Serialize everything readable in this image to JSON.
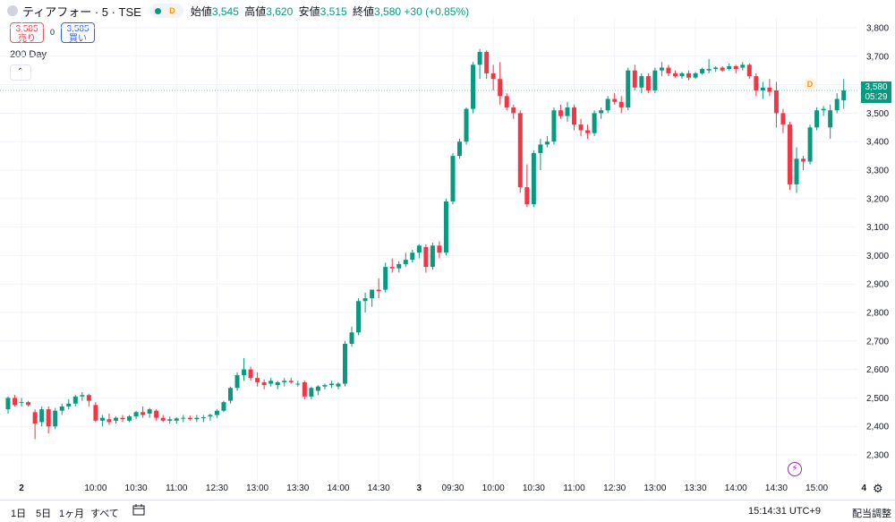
{
  "header": {
    "symbol": "ティアフォー · 5 · TSE",
    "session_badge": "D",
    "ohlc": [
      {
        "label": "始値",
        "value": "3,545"
      },
      {
        "label": "高値",
        "value": "3,620"
      },
      {
        "label": "安値",
        "value": "3,515"
      },
      {
        "label": "終値",
        "value": "3,580"
      }
    ],
    "change": "+30 (+0.85%)"
  },
  "trade": {
    "sell_price": "3,585",
    "sell_label": "売り",
    "spread": "0",
    "buy_price": "3,585",
    "buy_label": "買い"
  },
  "indicator_label": "200 Day",
  "collapse_icon": "chevron-up-icon",
  "chart_marker": "D",
  "price_tag": {
    "price": "3,580",
    "countdown": "05:29"
  },
  "colors": {
    "up": "#089981",
    "down": "#f23645",
    "grid": "#f0f3fa"
  },
  "bottom_bar": {
    "ranges": [
      "1日",
      "5日",
      "1ヶ月",
      "すべて"
    ],
    "clock": "15:14:31 UTC+9",
    "adjust": "配当調整"
  },
  "chart_data": {
    "type": "candlestick",
    "interval": "5 minutes",
    "y_axis_ticks": [
      "2,300",
      "2,400",
      "2,500",
      "2,600",
      "2,700",
      "2,800",
      "2,900",
      "3,000",
      "3,100",
      "3,200",
      "3,300",
      "3,400",
      "3,500",
      "3,600",
      "3,700",
      "3,800"
    ],
    "ylim": [
      2260,
      3820
    ],
    "x_axis_ticks": [
      {
        "label": "2",
        "i": 2
      },
      {
        "label": "10:00",
        "i": 13
      },
      {
        "label": "10:30",
        "i": 19
      },
      {
        "label": "11:00",
        "i": 25
      },
      {
        "label": "12:30",
        "i": 31
      },
      {
        "label": "13:00",
        "i": 37
      },
      {
        "label": "13:30",
        "i": 43
      },
      {
        "label": "14:00",
        "i": 49
      },
      {
        "label": "14:30",
        "i": 55
      },
      {
        "label": "3",
        "i": 61
      },
      {
        "label": "09:30",
        "i": 66
      },
      {
        "label": "10:00",
        "i": 72
      },
      {
        "label": "10:30",
        "i": 78
      },
      {
        "label": "11:00",
        "i": 84
      },
      {
        "label": "12:30",
        "i": 90
      },
      {
        "label": "13:00",
        "i": 96
      },
      {
        "label": "13:30",
        "i": 102
      },
      {
        "label": "14:00",
        "i": 108
      },
      {
        "label": "14:30",
        "i": 114
      },
      {
        "label": "15:00",
        "i": 120
      },
      {
        "label": "4",
        "i": 127
      }
    ],
    "current_price": 3580,
    "candles": [
      [
        2460,
        2505,
        2445,
        2500
      ],
      [
        2500,
        2510,
        2470,
        2475
      ],
      [
        2485,
        2500,
        2470,
        2485
      ],
      [
        2485,
        2490,
        2470,
        2475
      ],
      [
        2450,
        2460,
        2355,
        2410
      ],
      [
        2415,
        2470,
        2400,
        2460
      ],
      [
        2460,
        2470,
        2375,
        2400
      ],
      [
        2400,
        2465,
        2390,
        2455
      ],
      [
        2455,
        2480,
        2440,
        2470
      ],
      [
        2470,
        2495,
        2460,
        2480
      ],
      [
        2480,
        2510,
        2470,
        2505
      ],
      [
        2505,
        2520,
        2490,
        2510
      ],
      [
        2510,
        2515,
        2470,
        2490
      ],
      [
        2475,
        2485,
        2415,
        2420
      ],
      [
        2420,
        2440,
        2400,
        2430
      ],
      [
        2425,
        2445,
        2405,
        2415
      ],
      [
        2420,
        2435,
        2410,
        2430
      ],
      [
        2430,
        2440,
        2415,
        2425
      ],
      [
        2420,
        2440,
        2415,
        2435
      ],
      [
        2435,
        2455,
        2425,
        2450
      ],
      [
        2450,
        2470,
        2430,
        2440
      ],
      [
        2445,
        2465,
        2430,
        2460
      ],
      [
        2455,
        2460,
        2420,
        2430
      ],
      [
        2430,
        2440,
        2415,
        2420
      ],
      [
        2420,
        2435,
        2410,
        2425
      ],
      [
        2420,
        2432,
        2410,
        2428
      ],
      [
        2428,
        2440,
        2415,
        2430
      ],
      [
        2430,
        2438,
        2420,
        2425
      ],
      [
        2425,
        2440,
        2415,
        2430
      ],
      [
        2430,
        2440,
        2415,
        2432
      ],
      [
        2435,
        2445,
        2420,
        2440
      ],
      [
        2440,
        2460,
        2430,
        2455
      ],
      [
        2455,
        2490,
        2450,
        2485
      ],
      [
        2490,
        2540,
        2480,
        2535
      ],
      [
        2535,
        2590,
        2525,
        2580
      ],
      [
        2580,
        2640,
        2560,
        2600
      ],
      [
        2600,
        2610,
        2560,
        2570
      ],
      [
        2570,
        2590,
        2540,
        2555
      ],
      [
        2555,
        2565,
        2530,
        2545
      ],
      [
        2550,
        2570,
        2540,
        2560
      ],
      [
        2545,
        2560,
        2530,
        2555
      ],
      [
        2555,
        2570,
        2540,
        2560
      ],
      [
        2560,
        2570,
        2550,
        2555
      ],
      [
        2550,
        2560,
        2540,
        2550
      ],
      [
        2555,
        2560,
        2495,
        2505
      ],
      [
        2505,
        2540,
        2495,
        2535
      ],
      [
        2525,
        2545,
        2510,
        2540
      ],
      [
        2540,
        2550,
        2530,
        2545
      ],
      [
        2545,
        2560,
        2535,
        2550
      ],
      [
        2540,
        2555,
        2530,
        2550
      ],
      [
        2550,
        2700,
        2540,
        2690
      ],
      [
        2690,
        2750,
        2680,
        2730
      ],
      [
        2730,
        2850,
        2720,
        2840
      ],
      [
        2840,
        2870,
        2800,
        2850
      ],
      [
        2850,
        2880,
        2820,
        2880
      ],
      [
        2880,
        2920,
        2850,
        2875
      ],
      [
        2880,
        2975,
        2870,
        2960
      ],
      [
        2960,
        2990,
        2940,
        2955
      ],
      [
        2955,
        2980,
        2940,
        2970
      ],
      [
        2970,
        3010,
        2960,
        2985
      ],
      [
        2985,
        3020,
        2975,
        3010
      ],
      [
        3010,
        3040,
        2990,
        3035
      ],
      [
        3030,
        3040,
        2940,
        2960
      ],
      [
        2960,
        3045,
        2950,
        3035
      ],
      [
        3035,
        3050,
        2990,
        3010
      ],
      [
        3010,
        3200,
        3000,
        3190
      ],
      [
        3190,
        3360,
        3180,
        3350
      ],
      [
        3350,
        3410,
        3340,
        3400
      ],
      [
        3400,
        3520,
        3390,
        3515
      ],
      [
        3515,
        3680,
        3500,
        3670
      ],
      [
        3670,
        3725,
        3620,
        3715
      ],
      [
        3715,
        3720,
        3620,
        3640
      ],
      [
        3640,
        3670,
        3580,
        3620
      ],
      [
        3620,
        3680,
        3530,
        3560
      ],
      [
        3560,
        3570,
        3510,
        3520
      ],
      [
        3520,
        3530,
        3480,
        3500
      ],
      [
        3500,
        3510,
        3220,
        3240
      ],
      [
        3240,
        3320,
        3170,
        3180
      ],
      [
        3180,
        3370,
        3170,
        3360
      ],
      [
        3360,
        3410,
        3300,
        3390
      ],
      [
        3390,
        3420,
        3380,
        3400
      ],
      [
        3400,
        3520,
        3390,
        3510
      ],
      [
        3510,
        3530,
        3480,
        3490
      ],
      [
        3490,
        3540,
        3470,
        3520
      ],
      [
        3520,
        3530,
        3440,
        3460
      ],
      [
        3460,
        3480,
        3420,
        3440
      ],
      [
        3440,
        3460,
        3410,
        3430
      ],
      [
        3430,
        3510,
        3420,
        3500
      ],
      [
        3500,
        3520,
        3480,
        3510
      ],
      [
        3510,
        3560,
        3500,
        3550
      ],
      [
        3550,
        3570,
        3530,
        3540
      ],
      [
        3540,
        3560,
        3500,
        3520
      ],
      [
        3520,
        3660,
        3510,
        3650
      ],
      [
        3650,
        3670,
        3580,
        3590
      ],
      [
        3590,
        3640,
        3570,
        3630
      ],
      [
        3630,
        3640,
        3570,
        3580
      ],
      [
        3580,
        3660,
        3570,
        3650
      ],
      [
        3650,
        3680,
        3630,
        3660
      ],
      [
        3660,
        3670,
        3630,
        3640
      ],
      [
        3640,
        3650,
        3625,
        3630
      ],
      [
        3630,
        3645,
        3620,
        3640
      ],
      [
        3640,
        3650,
        3615,
        3625
      ],
      [
        3625,
        3645,
        3620,
        3640
      ],
      [
        3640,
        3660,
        3635,
        3655
      ],
      [
        3650,
        3690,
        3640,
        3655
      ],
      [
        3655,
        3665,
        3645,
        3660
      ],
      [
        3660,
        3665,
        3645,
        3650
      ],
      [
        3655,
        3675,
        3650,
        3665
      ],
      [
        3665,
        3670,
        3640,
        3655
      ],
      [
        3660,
        3680,
        3650,
        3670
      ],
      [
        3670,
        3675,
        3620,
        3630
      ],
      [
        3630,
        3640,
        3560,
        3580
      ],
      [
        3580,
        3610,
        3550,
        3590
      ],
      [
        3590,
        3620,
        3560,
        3575
      ],
      [
        3580,
        3610,
        3450,
        3500
      ],
      [
        3500,
        3515,
        3430,
        3460
      ],
      [
        3460,
        3470,
        3230,
        3250
      ],
      [
        3250,
        3380,
        3220,
        3340
      ],
      [
        3340,
        3350,
        3300,
        3330
      ],
      [
        3330,
        3460,
        3320,
        3450
      ],
      [
        3450,
        3520,
        3440,
        3510
      ],
      [
        3510,
        3525,
        3490,
        3515
      ],
      [
        3450,
        3530,
        3410,
        3510
      ],
      [
        3510,
        3570,
        3500,
        3550
      ],
      [
        3545,
        3620,
        3515,
        3580
      ]
    ]
  }
}
